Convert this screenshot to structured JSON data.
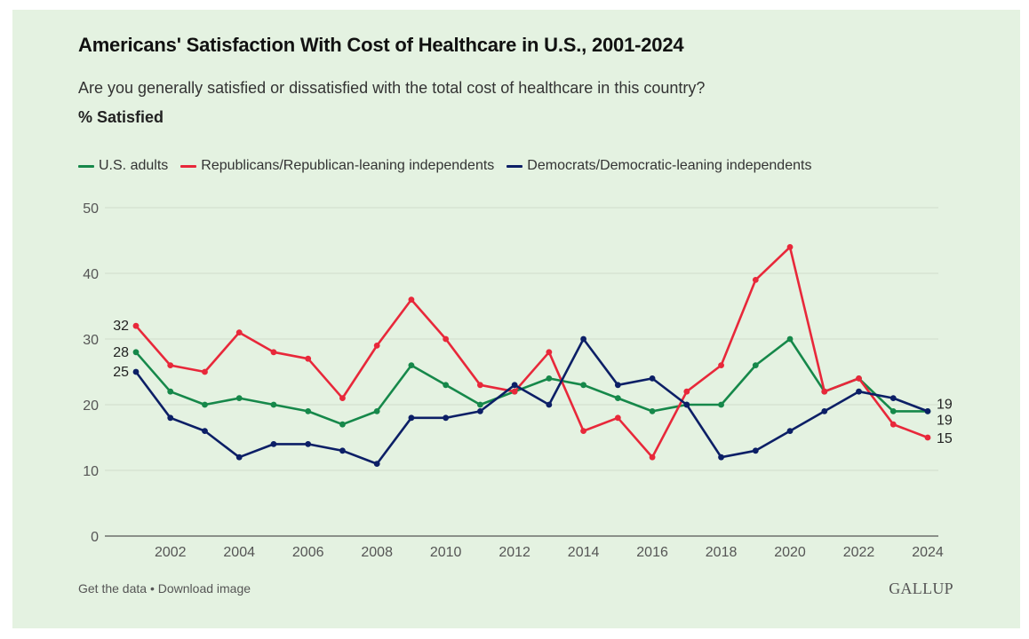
{
  "header": {
    "title": "Americans' Satisfaction With Cost of Healthcare in U.S., 2001-2024",
    "subtitle": "Are you generally satisfied or dissatisfied with the total cost of healthcare in this country?",
    "unit_label": "% Satisfied"
  },
  "footer": {
    "get_data": "Get the data",
    "separator": " • ",
    "download": "Download image",
    "logo": "GALLUP"
  },
  "chart_data": {
    "type": "line",
    "title": "Americans' Satisfaction With Cost of Healthcare in U.S., 2001-2024",
    "xlabel": "",
    "ylabel": "% Satisfied",
    "ylim": [
      0,
      50
    ],
    "xlim": [
      2001,
      2024
    ],
    "grid": true,
    "legend_position": "top-left",
    "y_ticks": [
      0,
      10,
      20,
      30,
      40,
      50
    ],
    "x_ticks": [
      2002,
      2004,
      2006,
      2008,
      2010,
      2012,
      2014,
      2016,
      2018,
      2020,
      2022,
      2024
    ],
    "x": [
      2001,
      2002,
      2003,
      2004,
      2005,
      2006,
      2007,
      2008,
      2009,
      2010,
      2011,
      2012,
      2013,
      2014,
      2015,
      2016,
      2017,
      2018,
      2019,
      2020,
      2021,
      2022,
      2023,
      2024
    ],
    "series": [
      {
        "name": "U.S. adults",
        "color": "#16884a",
        "values": [
          28,
          22,
          20,
          21,
          20,
          19,
          17,
          19,
          26,
          23,
          20,
          22,
          24,
          23,
          21,
          19,
          20,
          20,
          26,
          30,
          22,
          24,
          19,
          19
        ],
        "start_label": "28",
        "end_label": "19"
      },
      {
        "name": "Republicans/Republican-leaning independents",
        "color": "#e8283a",
        "values": [
          32,
          26,
          25,
          31,
          28,
          27,
          21,
          29,
          36,
          30,
          23,
          22,
          28,
          16,
          18,
          12,
          22,
          26,
          39,
          44,
          22,
          24,
          17,
          15
        ],
        "start_label": "32",
        "end_label": "15"
      },
      {
        "name": "Democrats/Democratic-leaning independents",
        "color": "#0c1f66",
        "values": [
          25,
          18,
          16,
          12,
          14,
          14,
          13,
          11,
          18,
          18,
          19,
          23,
          20,
          30,
          23,
          24,
          20,
          12,
          13,
          16,
          19,
          22,
          21,
          19
        ],
        "start_label": "25",
        "end_label": "19"
      }
    ]
  }
}
